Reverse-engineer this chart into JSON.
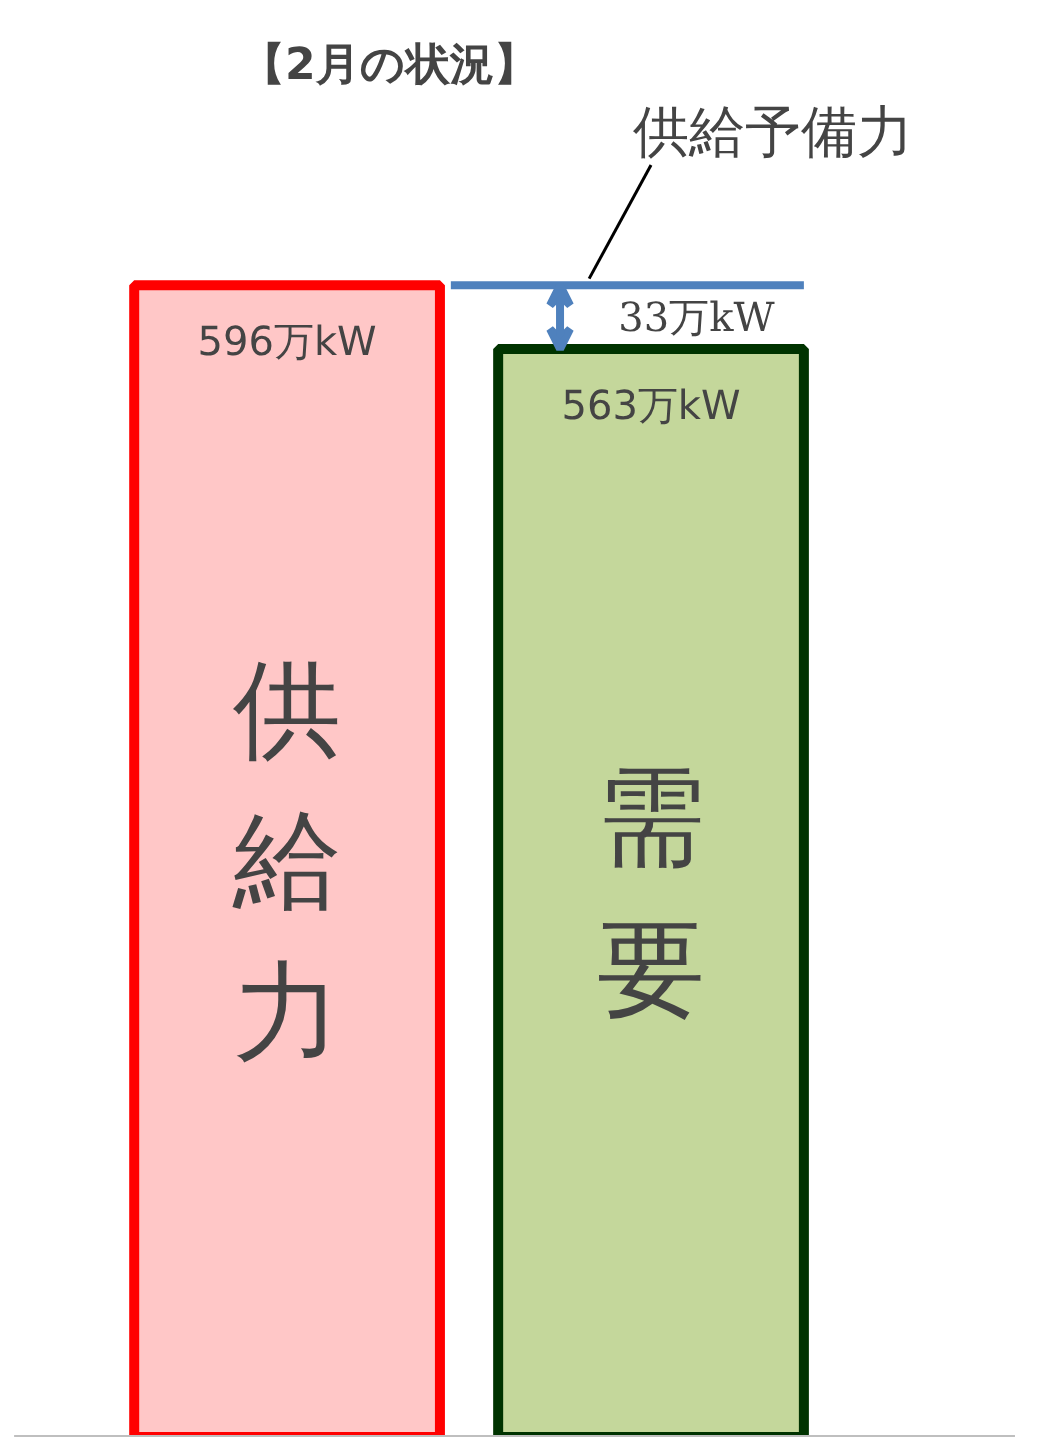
{
  "chart_data": {
    "type": "bar",
    "title": "【2月の状況】",
    "categories": [
      "供給力",
      "需要"
    ],
    "values": [
      596,
      563
    ],
    "value_labels": [
      "596万kW",
      "563万kW"
    ],
    "colors": [
      "#ffc7c7",
      "#c4d79b"
    ],
    "grid": false,
    "tick_labels": false,
    "ref_lines": [
      {
        "axis": "y",
        "value": 596,
        "label": "供給予備力",
        "color": "#4f81bd"
      }
    ],
    "annotations": [
      "33万kW"
    ]
  }
}
